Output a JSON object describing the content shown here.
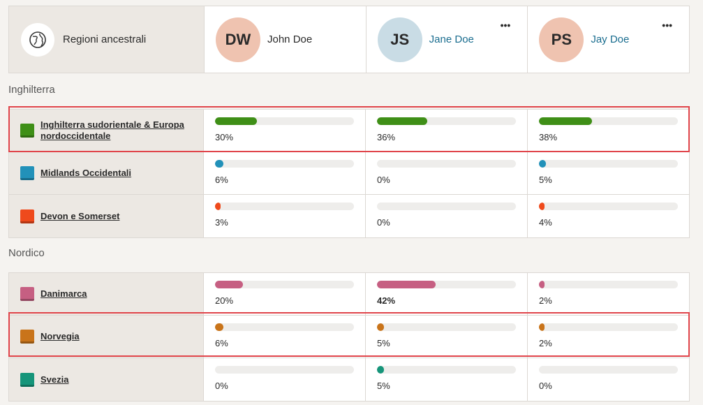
{
  "header": {
    "region_label": "Regioni ancestrali",
    "people": [
      {
        "initials": "DW",
        "name": "John Doe",
        "avatar_color": "#efc3b0",
        "is_link": false,
        "has_menu": false
      },
      {
        "initials": "JS",
        "name": "Jane Doe",
        "avatar_color": "#c9dce5",
        "is_link": true,
        "has_menu": true
      },
      {
        "initials": "PS",
        "name": "Jay Doe",
        "avatar_color": "#efc3b0",
        "is_link": true,
        "has_menu": true
      }
    ],
    "menu_glyph": "•••"
  },
  "sections": [
    {
      "title": "Inghilterra",
      "rows": [
        {
          "name": "Inghilterra sudorientale & Europa nordoccidentale",
          "color": "#3f8f17",
          "values": [
            {
              "pct": 30,
              "label": "30%"
            },
            {
              "pct": 36,
              "label": "36%"
            },
            {
              "pct": 38,
              "label": "38%"
            }
          ]
        },
        {
          "name": "Midlands Occidentali",
          "color": "#2291b9",
          "values": [
            {
              "pct": 6,
              "label": "6%"
            },
            {
              "pct": 0,
              "label": "0%"
            },
            {
              "pct": 5,
              "label": "5%"
            }
          ]
        },
        {
          "name": "Devon e Somerset",
          "color": "#ef4a1c",
          "values": [
            {
              "pct": 3,
              "label": "3%"
            },
            {
              "pct": 0,
              "label": "0%"
            },
            {
              "pct": 4,
              "label": "4%"
            }
          ]
        }
      ]
    },
    {
      "title": "Nordico",
      "rows": [
        {
          "name": "Danimarca",
          "color": "#c65f82",
          "values": [
            {
              "pct": 20,
              "label": "20%"
            },
            {
              "pct": 42,
              "label": "42%",
              "bold": true
            },
            {
              "pct": 2,
              "label": "2%"
            }
          ]
        },
        {
          "name": "Norvegia",
          "color": "#c9741a",
          "values": [
            {
              "pct": 6,
              "label": "6%"
            },
            {
              "pct": 5,
              "label": "5%"
            },
            {
              "pct": 2,
              "label": "2%"
            }
          ]
        },
        {
          "name": "Svezia",
          "color": "#16957a",
          "values": [
            {
              "pct": 0,
              "label": "0%"
            },
            {
              "pct": 5,
              "label": "5%"
            },
            {
              "pct": 0,
              "label": "0%"
            }
          ]
        }
      ]
    }
  ]
}
